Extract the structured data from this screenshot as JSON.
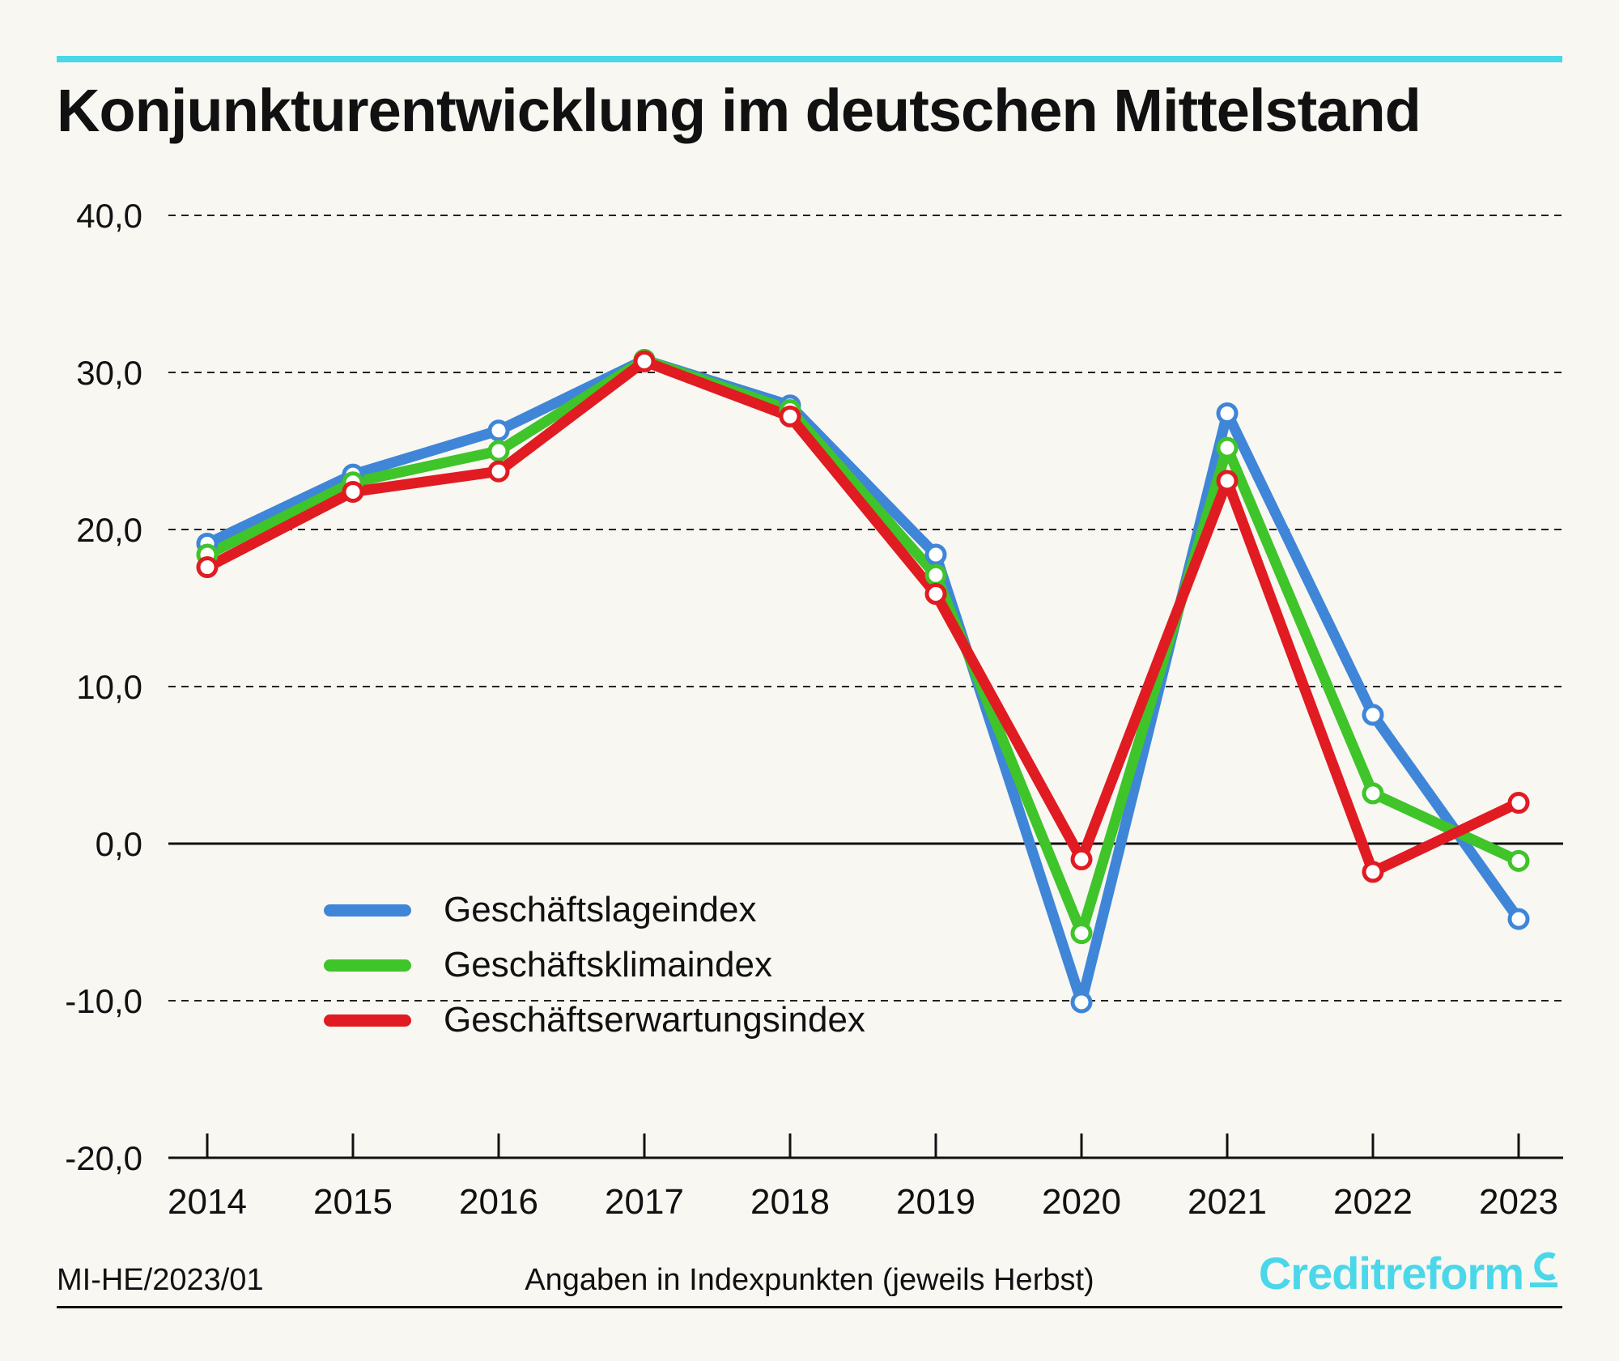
{
  "title": "Konjunkturentwicklung im deutschen Mittelstand",
  "footer": {
    "code": "MI-HE/2023/01",
    "note": "Angaben in Indexpunkten (jeweils Herbst)",
    "brand": "Creditreform"
  },
  "colors": {
    "accent": "#4ad7ea",
    "lage": "#3f86d8",
    "klima": "#3fc42a",
    "erwartung": "#e11b22"
  },
  "chart_data": {
    "type": "line",
    "title": "Konjunkturentwicklung im deutschen Mittelstand",
    "categories": [
      "2014",
      "2015",
      "2016",
      "2017",
      "2018",
      "2019",
      "2020",
      "2021",
      "2022",
      "2023"
    ],
    "ylim": [
      -20,
      40
    ],
    "yticks": [
      40,
      30,
      20,
      10,
      0,
      -10,
      -20
    ],
    "ytick_labels": [
      "40,0",
      "30,0",
      "20,0",
      "10,0",
      "0,0",
      "-10,0",
      "-20,0"
    ],
    "grid": true,
    "legend": "bottom-left",
    "series": [
      {
        "name": "Geschäftslageindex",
        "color": "#3f86d8",
        "values": [
          19.1,
          23.5,
          26.3,
          30.8,
          27.9,
          18.4,
          -10.1,
          27.4,
          8.2,
          -4.8
        ]
      },
      {
        "name": "Geschäftsklimaindex",
        "color": "#3fc42a",
        "values": [
          18.4,
          23.0,
          25.0,
          30.8,
          27.6,
          17.1,
          -5.7,
          25.2,
          3.2,
          -1.1
        ]
      },
      {
        "name": "Geschäftserwartungsindex",
        "color": "#e11b22",
        "values": [
          17.6,
          22.4,
          23.7,
          30.7,
          27.2,
          15.9,
          -1.0,
          23.1,
          -1.8,
          2.6
        ]
      }
    ]
  }
}
